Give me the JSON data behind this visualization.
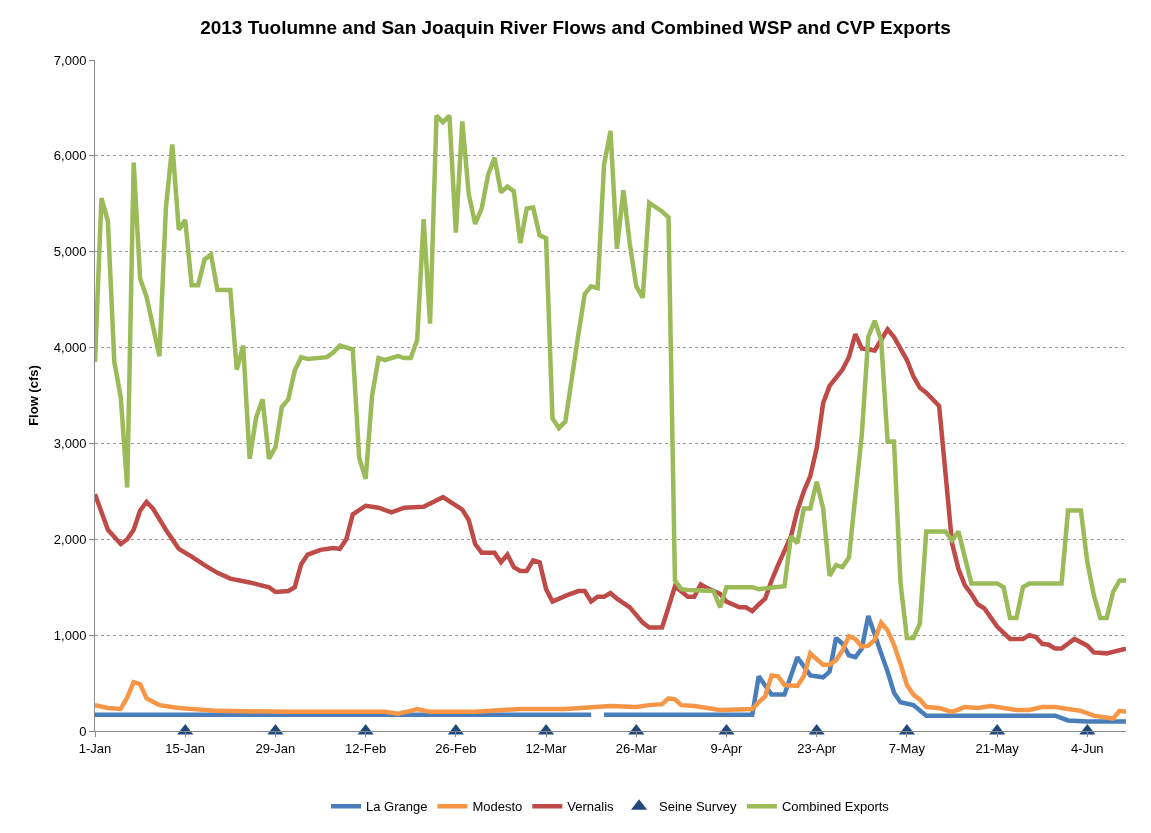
{
  "chart_data": {
    "type": "line",
    "title": "2013 Tuolumne and San Joaquin River Flows and Combined WSP and CVP Exports",
    "ylabel": "Flow (cfs)",
    "xlim": [
      "2013-01-01",
      "2013-06-10"
    ],
    "xticks": [
      {
        "value": "2013-01-01",
        "label": "1-Jan"
      },
      {
        "value": "2013-01-15",
        "label": "15-Jan"
      },
      {
        "value": "2013-01-29",
        "label": "29-Jan"
      },
      {
        "value": "2013-02-12",
        "label": "12-Feb"
      },
      {
        "value": "2013-02-26",
        "label": "26-Feb"
      },
      {
        "value": "2013-03-12",
        "label": "12-Mar"
      },
      {
        "value": "2013-03-26",
        "label": "26-Mar"
      },
      {
        "value": "2013-04-09",
        "label": "9-Apr"
      },
      {
        "value": "2013-04-23",
        "label": "23-Apr"
      },
      {
        "value": "2013-05-07",
        "label": "7-May"
      },
      {
        "value": "2013-05-21",
        "label": "21-May"
      },
      {
        "value": "2013-06-04",
        "label": "4-Jun"
      }
    ],
    "ylim": [
      0,
      7000
    ],
    "yticks": [
      0,
      {
        "value": 1000,
        "label": "1,000"
      },
      {
        "value": 2000,
        "label": "2,000"
      },
      {
        "value": 3000,
        "label": "3,000"
      },
      {
        "value": 4000,
        "label": "4,000"
      },
      {
        "value": 5000,
        "label": "5,000"
      },
      {
        "value": 6000,
        "label": "6,000"
      },
      {
        "value": 7000,
        "label": "7,000"
      }
    ],
    "grid": "y",
    "legend": "bottom",
    "line_style": "solid",
    "series": [
      {
        "name": "La Grange",
        "marker": "none",
        "color": "#4a7ebb",
        "x": [
          "2013-01-01",
          "2013-01-31",
          "2013-02-20",
          "2013-03-19",
          "2013-03-20",
          "2013-03-21",
          "2013-04-13",
          "2013-04-14",
          "2013-04-16",
          "2013-04-18",
          "2013-04-20",
          "2013-04-22",
          "2013-04-24",
          "2013-04-25",
          "2013-04-26",
          "2013-04-27",
          "2013-04-28",
          "2013-04-29",
          "2013-04-30",
          "2013-05-01",
          "2013-05-02",
          "2013-05-03",
          "2013-05-04",
          "2013-05-05",
          "2013-05-06",
          "2013-05-08",
          "2013-05-10",
          "2013-05-30",
          "2013-06-01",
          "2013-06-04",
          "2013-06-10"
        ],
        "values": [
          170,
          170,
          170,
          170,
          null,
          170,
          170,
          570,
          380,
          380,
          770,
          580,
          560,
          620,
          970,
          910,
          790,
          770,
          860,
          1200,
          1010,
          810,
          620,
          400,
          300,
          270,
          160,
          160,
          110,
          100,
          100
        ]
      },
      {
        "name": "Modesto",
        "marker": "none",
        "color": "#f79646",
        "x": [
          "2013-01-01",
          "2013-01-03",
          "2013-01-05",
          "2013-01-06",
          "2013-01-07",
          "2013-01-08",
          "2013-01-09",
          "2013-01-11",
          "2013-01-14",
          "2013-01-20",
          "2013-01-31",
          "2013-02-15",
          "2013-02-17",
          "2013-02-19",
          "2013-02-20",
          "2013-02-22",
          "2013-03-01",
          "2013-03-08",
          "2013-03-15",
          "2013-03-22",
          "2013-03-26",
          "2013-03-28",
          "2013-03-30",
          "2013-03-31",
          "2013-04-01",
          "2013-04-02",
          "2013-04-04",
          "2013-04-06",
          "2013-04-08",
          "2013-04-13",
          "2013-04-14",
          "2013-04-15",
          "2013-04-16",
          "2013-04-17",
          "2013-04-18",
          "2013-04-20",
          "2013-04-21",
          "2013-04-22",
          "2013-04-23",
          "2013-04-24",
          "2013-04-25",
          "2013-04-26",
          "2013-04-27",
          "2013-04-28",
          "2013-04-29",
          "2013-04-30",
          "2013-05-01",
          "2013-05-02",
          "2013-05-03",
          "2013-05-04",
          "2013-05-05",
          "2013-05-06",
          "2013-05-07",
          "2013-05-08",
          "2013-05-09",
          "2013-05-10",
          "2013-05-12",
          "2013-05-14",
          "2013-05-16",
          "2013-05-18",
          "2013-05-20",
          "2013-05-22",
          "2013-05-24",
          "2013-05-26",
          "2013-05-28",
          "2013-05-30",
          "2013-06-01",
          "2013-06-03",
          "2013-06-05",
          "2013-06-08",
          "2013-06-09",
          "2013-06-10"
        ],
        "values": [
          270,
          240,
          230,
          350,
          510,
          490,
          340,
          270,
          240,
          210,
          200,
          200,
          180,
          210,
          230,
          200,
          200,
          230,
          230,
          260,
          250,
          270,
          280,
          340,
          330,
          270,
          260,
          240,
          220,
          230,
          300,
          360,
          580,
          570,
          480,
          470,
          570,
          810,
          750,
          690,
          690,
          740,
          840,
          990,
          960,
          880,
          890,
          950,
          1130,
          1050,
          900,
          700,
          480,
          380,
          330,
          250,
          240,
          200,
          250,
          240,
          260,
          240,
          220,
          220,
          250,
          250,
          230,
          210,
          160,
          130,
          210,
          200
        ]
      },
      {
        "name": "Vernalis",
        "marker": "none",
        "color": "#be4b48",
        "x": [
          "2013-01-01",
          "2013-01-03",
          "2013-01-05",
          "2013-01-06",
          "2013-01-07",
          "2013-01-08",
          "2013-01-09",
          "2013-01-10",
          "2013-01-12",
          "2013-01-14",
          "2013-01-16",
          "2013-01-18",
          "2013-01-20",
          "2013-01-22",
          "2013-01-25",
          "2013-01-28",
          "2013-01-29",
          "2013-01-31",
          "2013-02-01",
          "2013-02-02",
          "2013-02-03",
          "2013-02-05",
          "2013-02-07",
          "2013-02-08",
          "2013-02-09",
          "2013-02-10",
          "2013-02-12",
          "2013-02-14",
          "2013-02-16",
          "2013-02-18",
          "2013-02-21",
          "2013-02-24",
          "2013-02-27",
          "2013-02-28",
          "2013-03-01",
          "2013-03-02",
          "2013-03-04",
          "2013-03-05",
          "2013-03-06",
          "2013-03-07",
          "2013-03-08",
          "2013-03-09",
          "2013-03-10",
          "2013-03-11",
          "2013-03-12",
          "2013-03-13",
          "2013-03-15",
          "2013-03-17",
          "2013-03-18",
          "2013-03-19",
          "2013-03-20",
          "2013-03-21",
          "2013-03-22",
          "2013-03-23",
          "2013-03-25",
          "2013-03-27",
          "2013-03-28",
          "2013-03-30",
          "2013-03-31",
          "2013-04-01",
          "2013-04-03",
          "2013-04-04",
          "2013-04-05",
          "2013-04-06",
          "2013-04-08",
          "2013-04-09",
          "2013-04-11",
          "2013-04-12",
          "2013-04-13",
          "2013-04-14",
          "2013-04-15",
          "2013-04-16",
          "2013-04-17",
          "2013-04-19",
          "2013-04-20",
          "2013-04-21",
          "2013-04-22",
          "2013-04-23",
          "2013-04-24",
          "2013-04-25",
          "2013-04-27",
          "2013-04-28",
          "2013-04-29",
          "2013-04-30",
          "2013-05-02",
          "2013-05-04",
          "2013-05-05",
          "2013-05-07",
          "2013-05-08",
          "2013-05-09",
          "2013-05-10",
          "2013-05-12",
          "2013-05-13",
          "2013-05-14",
          "2013-05-15",
          "2013-05-16",
          "2013-05-17",
          "2013-05-18",
          "2013-05-19",
          "2013-05-21",
          "2013-05-23",
          "2013-05-25",
          "2013-05-26",
          "2013-05-27",
          "2013-05-28",
          "2013-05-29",
          "2013-05-30",
          "2013-05-31",
          "2013-06-02",
          "2013-06-04",
          "2013-06-05",
          "2013-06-07",
          "2013-06-10"
        ],
        "values": [
          2470,
          2100,
          1950,
          2000,
          2100,
          2300,
          2390,
          2320,
          2100,
          1900,
          1820,
          1730,
          1650,
          1590,
          1550,
          1500,
          1450,
          1460,
          1500,
          1740,
          1840,
          1890,
          1910,
          1900,
          2000,
          2260,
          2350,
          2330,
          2280,
          2330,
          2340,
          2440,
          2310,
          2200,
          1950,
          1860,
          1860,
          1760,
          1840,
          1710,
          1670,
          1670,
          1780,
          1760,
          1480,
          1350,
          1410,
          1460,
          1460,
          1350,
          1400,
          1400,
          1440,
          1380,
          1290,
          1130,
          1080,
          1080,
          1290,
          1510,
          1400,
          1400,
          1530,
          1490,
          1430,
          1350,
          1290,
          1290,
          1250,
          1320,
          1380,
          1570,
          1730,
          2030,
          2300,
          2500,
          2660,
          2950,
          3420,
          3600,
          3770,
          3900,
          4140,
          3990,
          3970,
          4190,
          4110,
          3870,
          3700,
          3580,
          3530,
          3390,
          2680,
          1960,
          1690,
          1520,
          1430,
          1320,
          1280,
          1090,
          960,
          960,
          1000,
          980,
          910,
          900,
          860,
          860,
          960,
          890,
          820,
          810,
          860
        ]
      },
      {
        "name": "Seine Survey",
        "type": "scatter",
        "marker": "triangle",
        "color": "#1f497d",
        "x": [
          "2013-01-15",
          "2013-01-29",
          "2013-02-12",
          "2013-02-26",
          "2013-03-12",
          "2013-03-26",
          "2013-04-09",
          "2013-04-23",
          "2013-05-07",
          "2013-05-21",
          "2013-06-04"
        ],
        "values": [
          0,
          0,
          0,
          0,
          0,
          0,
          0,
          0,
          0,
          0,
          0
        ]
      },
      {
        "name": "Combined Exports",
        "marker": "none",
        "color": "#9bbb59",
        "x": [
          "2013-01-01",
          "2013-01-02",
          "2013-01-03",
          "2013-01-04",
          "2013-01-05",
          "2013-01-06",
          "2013-01-07",
          "2013-01-08",
          "2013-01-09",
          "2013-01-11",
          "2013-01-12",
          "2013-01-13",
          "2013-01-14",
          "2013-01-15",
          "2013-01-16",
          "2013-01-17",
          "2013-01-18",
          "2013-01-19",
          "2013-01-20",
          "2013-01-22",
          "2013-01-23",
          "2013-01-24",
          "2013-01-25",
          "2013-01-26",
          "2013-01-27",
          "2013-01-28",
          "2013-01-29",
          "2013-01-30",
          "2013-01-31",
          "2013-02-01",
          "2013-02-02",
          "2013-02-03",
          "2013-02-06",
          "2013-02-07",
          "2013-02-08",
          "2013-02-10",
          "2013-02-11",
          "2013-02-12",
          "2013-02-13",
          "2013-02-14",
          "2013-02-15",
          "2013-02-17",
          "2013-02-18",
          "2013-02-19",
          "2013-02-20",
          "2013-02-21",
          "2013-02-22",
          "2013-02-23",
          "2013-02-24",
          "2013-02-25",
          "2013-02-26",
          "2013-02-27",
          "2013-02-28",
          "2013-03-01",
          "2013-03-02",
          "2013-03-03",
          "2013-03-04",
          "2013-03-05",
          "2013-03-06",
          "2013-03-07",
          "2013-03-08",
          "2013-03-09",
          "2013-03-10",
          "2013-03-11",
          "2013-03-12",
          "2013-03-13",
          "2013-03-14",
          "2013-03-15",
          "2013-03-16",
          "2013-03-17",
          "2013-03-18",
          "2013-03-19",
          "2013-03-20",
          "2013-03-21",
          "2013-03-22",
          "2013-03-23",
          "2013-03-24",
          "2013-03-25",
          "2013-03-26",
          "2013-03-27",
          "2013-03-28",
          "2013-03-30",
          "2013-03-31",
          "2013-04-01",
          "2013-04-02",
          "2013-04-03",
          "2013-04-07",
          "2013-04-08",
          "2013-04-09",
          "2013-04-13",
          "2013-04-14",
          "2013-04-18",
          "2013-04-19",
          "2013-04-20",
          "2013-04-21",
          "2013-04-22",
          "2013-04-23",
          "2013-04-24",
          "2013-04-25",
          "2013-04-26",
          "2013-04-27",
          "2013-04-28",
          "2013-04-30",
          "2013-05-01",
          "2013-05-02",
          "2013-05-03",
          "2013-05-04",
          "2013-05-05",
          "2013-05-06",
          "2013-05-07",
          "2013-05-08",
          "2013-05-09",
          "2013-05-10",
          "2013-05-13",
          "2013-05-14",
          "2013-05-15",
          "2013-05-17",
          "2013-05-21",
          "2013-05-22",
          "2013-05-23",
          "2013-05-24",
          "2013-05-25",
          "2013-05-26",
          "2013-05-31",
          "2013-06-01",
          "2013-06-03",
          "2013-06-04",
          "2013-06-05",
          "2013-06-06",
          "2013-06-07",
          "2013-06-08",
          "2013-06-09",
          "2013-06-10"
        ],
        "values": [
          3850,
          5560,
          5320,
          3850,
          3480,
          2540,
          5930,
          4720,
          4530,
          3910,
          5450,
          6120,
          5230,
          5330,
          4650,
          4650,
          4920,
          4970,
          4600,
          4600,
          3770,
          4020,
          2840,
          3270,
          3460,
          2840,
          2960,
          3380,
          3460,
          3760,
          3900,
          3880,
          3900,
          3950,
          4020,
          3980,
          2850,
          2630,
          3500,
          3890,
          3870,
          3910,
          3890,
          3890,
          4080,
          5340,
          4250,
          6420,
          6350,
          6420,
          5200,
          6360,
          5600,
          5290,
          5450,
          5800,
          5980,
          5620,
          5680,
          5630,
          5090,
          5450,
          5460,
          5170,
          5140,
          3260,
          3160,
          3230,
          3680,
          4130,
          4560,
          4640,
          4620,
          5910,
          6260,
          5030,
          5640,
          5080,
          4640,
          4520,
          5510,
          5420,
          5360,
          1570,
          1480,
          1470,
          1460,
          1290,
          1500,
          1500,
          1480,
          1510,
          2030,
          1960,
          2320,
          2320,
          2600,
          2320,
          1620,
          1730,
          1710,
          1810,
          3090,
          4110,
          4280,
          4080,
          3020,
          3020,
          1550,
          970,
          970,
          1120,
          2080,
          2080,
          1990,
          2080,
          1540,
          1540,
          1500,
          1180,
          1180,
          1500,
          1540,
          1540,
          2300,
          2300,
          1760,
          1420,
          1180,
          1180,
          1450,
          1570,
          1570
        ]
      }
    ]
  }
}
